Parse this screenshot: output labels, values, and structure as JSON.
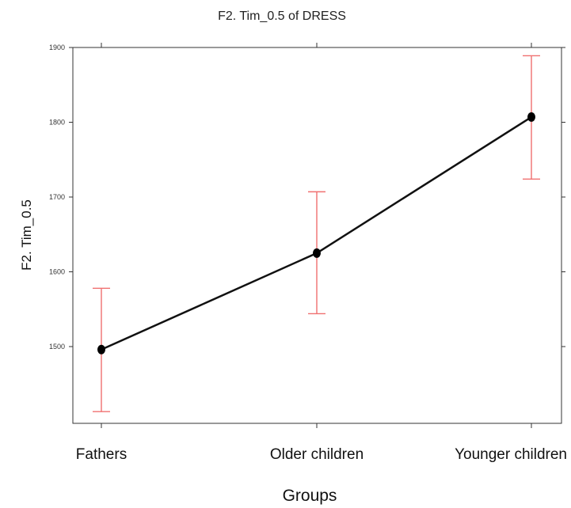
{
  "chart_data": {
    "type": "line",
    "title": "F2. Tim_0.5 of DRESS",
    "xlabel": "Groups",
    "ylabel": "F2. Tim_0.5",
    "categories": [
      "Fathers",
      "Older children",
      "Younger children"
    ],
    "series": [
      {
        "values": [
          1496,
          1625,
          1807
        ],
        "error_low": [
          1413,
          1544,
          1724
        ],
        "error_high": [
          1578,
          1707,
          1889
        ]
      }
    ],
    "yticks": [
      1500,
      1600,
      1700,
      1800,
      1900
    ],
    "ylim": [
      1400,
      1900
    ],
    "grid": false,
    "colors": {
      "line": "#111111",
      "point": "#000000",
      "errorbar": "#f07070",
      "frame": "#333333"
    }
  }
}
